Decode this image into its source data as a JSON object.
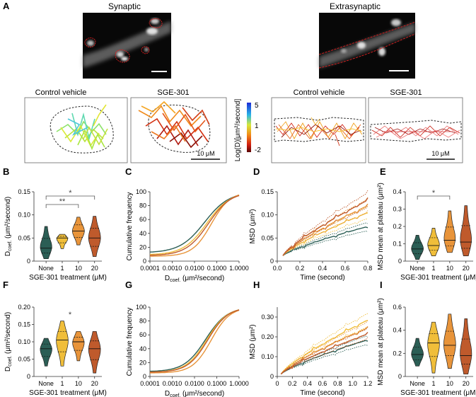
{
  "panel_letters": [
    "A",
    "B",
    "C",
    "D",
    "E",
    "F",
    "G",
    "H",
    "I"
  ],
  "panel_a": {
    "synaptic_title": "Synaptic",
    "extrasynaptic_title": "Extrasynaptic",
    "track_titles": [
      "Control vehicle",
      "SGE-301",
      "Control vehicle",
      "SGE-301"
    ],
    "scalebar_label": "10 μM",
    "colorbar": {
      "label": "Log(D)[μm²/second]",
      "ticks": [
        "5",
        "1",
        "-2"
      ],
      "colors": [
        "#1d2bd8",
        "#29b6e6",
        "#d6e83a",
        "#f28a17",
        "#d11d10",
        "#5a0606"
      ]
    }
  },
  "colors": {
    "none": "#2b5e55",
    "c1": "#f0be3a",
    "c10": "#e8943a",
    "c20": "#bf5a2c",
    "sig": "#444444"
  },
  "chart_data": [
    {
      "id": "B",
      "type": "violin",
      "categories": [
        "None",
        "1",
        "10",
        "20"
      ],
      "series_medians": [
        0.028,
        0.05,
        0.065,
        0.05
      ],
      "ranges": [
        [
          0.005,
          0.075
        ],
        [
          0.027,
          0.058
        ],
        [
          0.035,
          0.095
        ],
        [
          0.01,
          0.097
        ]
      ],
      "ylabel_main": "D",
      "ylabel_sub": "coef.",
      "ylabel_unit": " (μm²/second)",
      "xlabel": "SGE-301 treatment (μM)",
      "ylim": [
        0,
        0.15
      ],
      "yticks": [
        "0",
        "0.05",
        "0.10",
        "0.15"
      ],
      "significance": [
        {
          "from": 0,
          "to": 3,
          "label": "*"
        },
        {
          "from": 0,
          "to": 2,
          "label": "**"
        }
      ]
    },
    {
      "id": "C",
      "type": "line",
      "xlabel_main": "D",
      "xlabel_sub": "coef.",
      "xlabel_unit": " (μm²/second)",
      "ylabel": "Cumulative frequency",
      "xticks": [
        "0.0001",
        "0.0010",
        "0.0100",
        "0.1000",
        "1.0000"
      ],
      "yticks": [
        "0",
        "20",
        "40",
        "60",
        "80",
        "100"
      ],
      "ylim": [
        0,
        100
      ],
      "series": [
        {
          "name": "None",
          "mid": -1.55,
          "width": 0.55,
          "offset": 12
        },
        {
          "name": "1",
          "mid": -1.45,
          "width": 0.52,
          "offset": 9
        },
        {
          "name": "10",
          "mid": -1.25,
          "width": 0.42,
          "offset": 7
        },
        {
          "name": "20",
          "mid": -1.38,
          "width": 0.5,
          "offset": 8
        }
      ]
    },
    {
      "id": "D",
      "type": "line",
      "xlabel": "Time (second)",
      "ylabel": "MSD (μm²)",
      "xticks": [
        "0.0",
        "0.2",
        "0.4",
        "0.6",
        "0.8"
      ],
      "yticks": [
        "0",
        "0.05",
        "0.10",
        "0.15"
      ],
      "xlim": [
        0,
        0.8
      ],
      "ylim": [
        0,
        0.15
      ],
      "series": [
        {
          "name": "None",
          "end": 0.075
        },
        {
          "name": "1",
          "end": 0.105
        },
        {
          "name": "10",
          "end": 0.12
        },
        {
          "name": "20",
          "end": 0.132
        }
      ]
    },
    {
      "id": "E",
      "type": "violin",
      "categories": [
        "None",
        "1",
        "10",
        "20"
      ],
      "series_medians": [
        0.07,
        0.09,
        0.12,
        0.11
      ],
      "ranges": [
        [
          0.01,
          0.15
        ],
        [
          0.03,
          0.19
        ],
        [
          0.05,
          0.29
        ],
        [
          0.03,
          0.32
        ]
      ],
      "ylabel": "MSD mean at plateau (μm²)",
      "xlabel": "SGE-301 treatment (μM)",
      "ylim": [
        0,
        0.4
      ],
      "yticks": [
        "0",
        "0.1",
        "0.2",
        "0.3",
        "0.4"
      ],
      "significance": [
        {
          "from": 0,
          "to": 2,
          "label": "*"
        }
      ]
    },
    {
      "id": "F",
      "type": "violin",
      "categories": [
        "None",
        "1",
        "10",
        "20"
      ],
      "series_medians": [
        0.08,
        0.105,
        0.1,
        0.08
      ],
      "ranges": [
        [
          0.03,
          0.11
        ],
        [
          0.03,
          0.16
        ],
        [
          0.045,
          0.13
        ],
        [
          0.01,
          0.13
        ]
      ],
      "ylabel_main": "D",
      "ylabel_sub": "coef.",
      "ylabel_unit": " (μm²/second)",
      "xlabel": "SGE-301 treatment (μM)",
      "ylim": [
        0,
        0.2
      ],
      "yticks": [
        "0",
        "0.05",
        "0.10",
        "0.15",
        "0.20"
      ],
      "significance": [
        {
          "from": 1,
          "to": 1,
          "label": "*"
        }
      ]
    },
    {
      "id": "G",
      "type": "line",
      "xlabel_main": "D",
      "xlabel_sub": "coef.",
      "xlabel_unit": " (μm²/second)",
      "ylabel": "Cumulative frequency",
      "xticks": [
        "0.0001",
        "0.0010",
        "0.0100",
        "0.1000",
        "1.0000"
      ],
      "yticks": [
        "0",
        "20",
        "40",
        "60",
        "80",
        "100"
      ],
      "ylim": [
        0,
        100
      ],
      "series": [
        {
          "name": "None",
          "mid": -1.5,
          "width": 0.48,
          "offset": 7
        },
        {
          "name": "1",
          "mid": -1.45,
          "width": 0.46,
          "offset": 6
        },
        {
          "name": "10",
          "mid": -1.25,
          "width": 0.42,
          "offset": 5
        },
        {
          "name": "20",
          "mid": -1.4,
          "width": 0.45,
          "offset": 6
        }
      ]
    },
    {
      "id": "H",
      "type": "line",
      "xlabel": "Time (second)",
      "ylabel": "MSD (μm²)",
      "xticks": [
        "0",
        "0.2",
        "0.4",
        "0.6",
        "0.8",
        "1.0",
        "1.2"
      ],
      "yticks": [
        "0",
        "0.10",
        "0.20",
        "0.30"
      ],
      "xlim": [
        0,
        1.2
      ],
      "ylim": [
        0,
        0.35
      ],
      "series": [
        {
          "name": "None",
          "end": 0.185
        },
        {
          "name": "1",
          "end": 0.285
        },
        {
          "name": "10",
          "end": 0.245
        },
        {
          "name": "20",
          "end": 0.215
        }
      ]
    },
    {
      "id": "I",
      "type": "violin",
      "categories": [
        "None",
        "1",
        "10",
        "20"
      ],
      "series_medians": [
        0.19,
        0.29,
        0.27,
        0.18
      ],
      "ranges": [
        [
          0.09,
          0.33
        ],
        [
          0.03,
          0.47
        ],
        [
          0.07,
          0.54
        ],
        [
          0.02,
          0.5
        ]
      ],
      "ylabel": "MSD mean at plateau (μm²)",
      "xlabel": "SGE-301 treatment (μM)",
      "ylim": [
        0,
        0.6
      ],
      "yticks": [
        "0",
        "0.2",
        "0.4",
        "0.6"
      ],
      "significance": []
    }
  ]
}
